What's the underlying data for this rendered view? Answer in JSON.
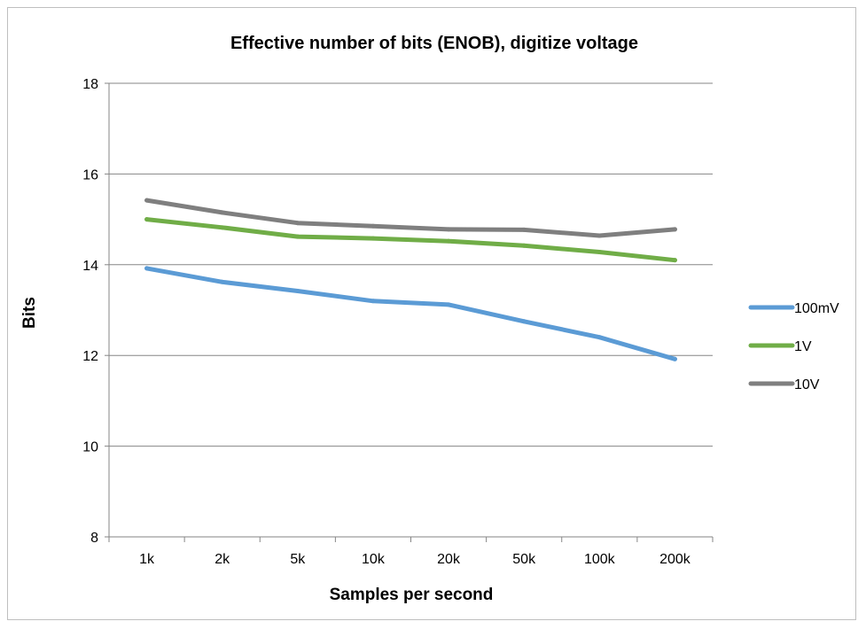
{
  "chart_data": {
    "type": "line",
    "title": "Effective number of bits (ENOB), digitize voltage",
    "xlabel": "Samples per second",
    "ylabel": "Bits",
    "categories": [
      "1k",
      "2k",
      "5k",
      "10k",
      "20k",
      "50k",
      "100k",
      "200k"
    ],
    "ylim": [
      8,
      18
    ],
    "yticks": [
      8,
      10,
      12,
      14,
      16,
      18
    ],
    "grid": true,
    "legend_position": "right",
    "series": [
      {
        "name": "100mV",
        "color": "#5b9bd5",
        "values": [
          13.92,
          13.62,
          13.42,
          13.2,
          13.12,
          12.75,
          12.4,
          11.92
        ]
      },
      {
        "name": "1V",
        "color": "#70ad47",
        "values": [
          15.0,
          14.82,
          14.62,
          14.58,
          14.52,
          14.42,
          14.28,
          14.1
        ]
      },
      {
        "name": "10V",
        "color": "#7f7f7f",
        "values": [
          15.42,
          15.15,
          14.92,
          14.85,
          14.78,
          14.77,
          14.64,
          14.78
        ]
      }
    ]
  }
}
